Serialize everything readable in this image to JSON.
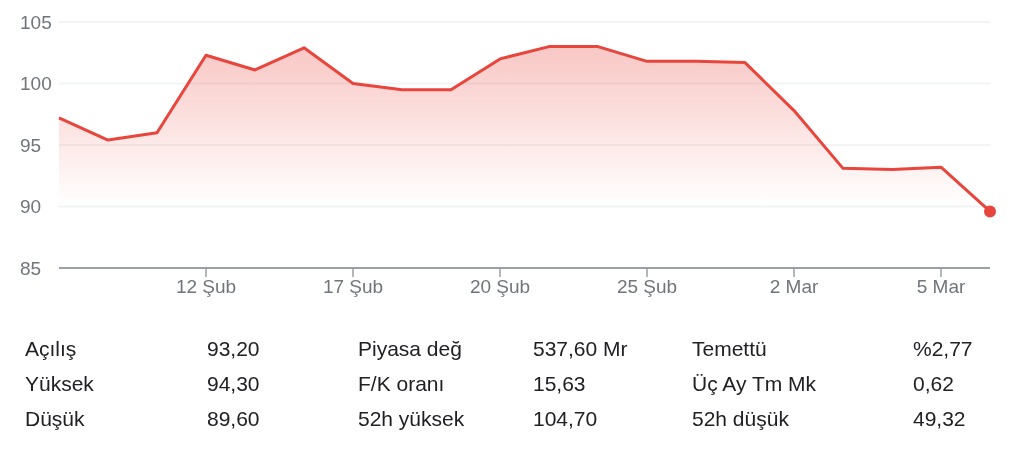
{
  "chart_data": [
    {
      "type": "area",
      "categories": [
        null,
        null,
        null,
        "12 Şub",
        null,
        null,
        "17 Şub",
        null,
        null,
        "20 Şub",
        null,
        null,
        "25 Şub",
        null,
        null,
        "2 Mar",
        null,
        null,
        "5 Mar",
        null
      ],
      "series": [
        {
          "type": "area",
          "color": "#e8453c",
          "values": [
            97.2,
            95.4,
            96.0,
            102.3,
            101.1,
            102.9,
            100.0,
            99.5,
            99.5,
            102.0,
            103.0,
            103.0,
            101.8,
            101.8,
            101.7,
            97.8,
            93.1,
            93.0,
            93.2,
            89.6
          ]
        },
        {
          "type": "scatter",
          "color": "#e8453c",
          "marker": "circle",
          "values": [
            null,
            null,
            null,
            null,
            null,
            null,
            null,
            null,
            null,
            null,
            null,
            null,
            null,
            null,
            null,
            null,
            null,
            null,
            null,
            89.6
          ]
        }
      ],
      "ylim": [
        85,
        105
      ],
      "yticks": [
        85,
        90,
        95,
        100,
        105
      ],
      "grid": "y"
    },
    {
      "type": "other",
      "annotations": [
        "Açılış",
        "93,20",
        "Piyasa değ",
        "537,60 Mr",
        "Temettü",
        "%2,77",
        "Yüksek",
        "94,30",
        "F/K oranı",
        "15,63",
        "Üç Ay Tm Mk",
        "0,62",
        "Düşük",
        "89,60",
        "52h yüksek",
        "104,70",
        "52h düşük",
        "49,32"
      ]
    }
  ]
}
